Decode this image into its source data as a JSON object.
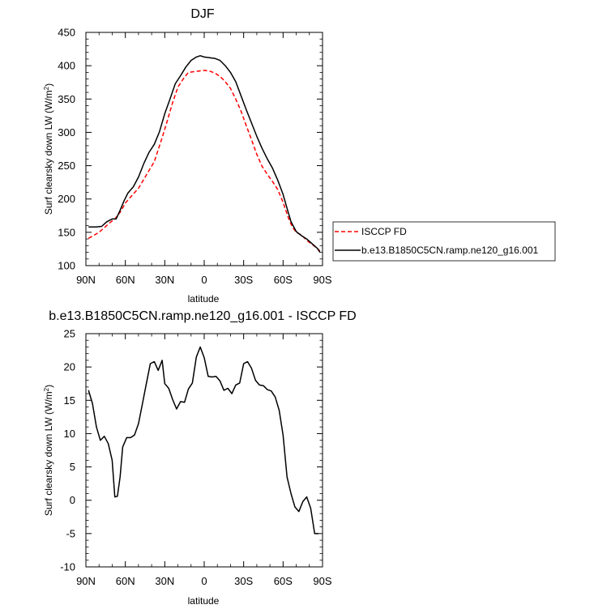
{
  "chart_data": [
    {
      "type": "line",
      "title": "DJF",
      "xlabel": "latitude",
      "ylabel": "Surf clearsky down LW (W/m",
      "ylabel_sup": "2",
      "ylabel_tail": ")",
      "x_reversed": true,
      "xlim": [
        90,
        -90
      ],
      "ylim": [
        100,
        450
      ],
      "x_ticks": [
        90,
        60,
        30,
        0,
        -30,
        -60,
        -90
      ],
      "x_tick_labels": [
        "90N",
        "60N",
        "30N",
        "0",
        "30S",
        "60S",
        "90S"
      ],
      "y_ticks": [
        100,
        150,
        200,
        250,
        300,
        350,
        400,
        450
      ],
      "y_tick_labels": [
        "100",
        "150",
        "200",
        "250",
        "300",
        "350",
        "400",
        "450"
      ],
      "grid": false,
      "legend_position": "right, outside",
      "series": [
        {
          "name": "ISCCP FD",
          "color": "#ff0000",
          "dash": "dashed",
          "x": [
            88,
            80,
            72,
            68,
            64,
            60,
            56,
            50,
            44,
            38,
            32,
            28,
            24,
            20,
            16,
            12,
            8,
            4,
            0,
            -4,
            -8,
            -12,
            -16,
            -20,
            -24,
            -28,
            -32,
            -36,
            -40,
            -44,
            -48,
            -52,
            -56,
            -60,
            -64,
            -67,
            -70,
            -74,
            -78,
            -82,
            -86,
            -88
          ],
          "y": [
            141,
            150,
            164,
            170,
            180,
            194,
            203,
            216,
            236,
            256,
            292,
            318,
            345,
            368,
            380,
            390,
            391,
            392,
            393,
            392,
            389,
            384,
            376,
            366,
            350,
            332,
            310,
            289,
            267,
            249,
            237,
            226,
            214,
            195,
            172,
            158,
            150,
            146,
            138,
            132,
            126,
            122
          ]
        },
        {
          "name": "b.e13.B1850C5CN.ramp.ne120_g16.001",
          "color": "#000000",
          "dash": "solid",
          "x": [
            88,
            82,
            78,
            74,
            70,
            67,
            64,
            61,
            58,
            54,
            50,
            46,
            42,
            38,
            34,
            30,
            26,
            22,
            18,
            14,
            10,
            6,
            3,
            0,
            -4,
            -8,
            -12,
            -16,
            -20,
            -24,
            -28,
            -32,
            -36,
            -40,
            -44,
            -48,
            -52,
            -56,
            -60,
            -63,
            -66,
            -70,
            -74,
            -78,
            -82,
            -86,
            -88
          ],
          "y": [
            158,
            158,
            159,
            166,
            170,
            170,
            183,
            197,
            209,
            218,
            233,
            253,
            270,
            282,
            301,
            328,
            350,
            373,
            385,
            398,
            408,
            413,
            415,
            413,
            412,
            411,
            408,
            400,
            390,
            376,
            355,
            334,
            314,
            294,
            276,
            260,
            246,
            228,
            207,
            186,
            166,
            151,
            145,
            140,
            133,
            126,
            120
          ]
        }
      ]
    },
    {
      "type": "line",
      "title": "b.e13.B1850C5CN.ramp.ne120_g16.001 - ISCCP FD",
      "xlabel": "latitude",
      "ylabel": "Surf clearsky down LW (W/m",
      "ylabel_sup": "2",
      "ylabel_tail": ")",
      "x_reversed": true,
      "xlim": [
        90,
        -90
      ],
      "ylim": [
        -10,
        25
      ],
      "x_ticks": [
        90,
        60,
        30,
        0,
        -30,
        -60,
        -90
      ],
      "x_tick_labels": [
        "90N",
        "60N",
        "30N",
        "0",
        "30S",
        "60S",
        "90S"
      ],
      "y_ticks": [
        -10,
        -5,
        0,
        5,
        10,
        15,
        20,
        25
      ],
      "y_tick_labels": [
        "-10",
        "-5",
        "0",
        "5",
        "10",
        "15",
        "20",
        "25"
      ],
      "grid": false,
      "series": [
        {
          "color": "#000000",
          "dash": "solid",
          "x": [
            88,
            85,
            82,
            79,
            76,
            73,
            70,
            68,
            66,
            64,
            62,
            59,
            56,
            53,
            50,
            47,
            44,
            41,
            38,
            35,
            32,
            30,
            27,
            24,
            21,
            18,
            15,
            12,
            9,
            6,
            3,
            0,
            -3,
            -6,
            -9,
            -12,
            -15,
            -18,
            -21,
            -24,
            -27,
            -30,
            -33,
            -36,
            -39,
            -42,
            -45,
            -48,
            -51,
            -54,
            -57,
            -60,
            -63,
            -66,
            -69,
            -72,
            -75,
            -78,
            -81,
            -84,
            -87
          ],
          "y": [
            16.5,
            14.5,
            11,
            9,
            9.6,
            8.5,
            6,
            0.5,
            0.6,
            3.5,
            8,
            9.4,
            9.4,
            9.8,
            11.5,
            14.5,
            17.5,
            20.5,
            20.8,
            19.5,
            21,
            17.5,
            16.8,
            15.1,
            13.7,
            14.8,
            14.7,
            16.7,
            17.6,
            21.5,
            23,
            21.4,
            18.6,
            18.5,
            18.6,
            17.9,
            16.5,
            16.8,
            16.0,
            17.3,
            17.6,
            20.5,
            20.8,
            19.8,
            18.0,
            17.3,
            17.2,
            16.6,
            16.4,
            15.5,
            13.5,
            9.8,
            3.5,
            1.0,
            -1.0,
            -1.7,
            -0.2,
            0.5,
            -1.2,
            -5.0,
            -5.0
          ]
        }
      ]
    }
  ]
}
